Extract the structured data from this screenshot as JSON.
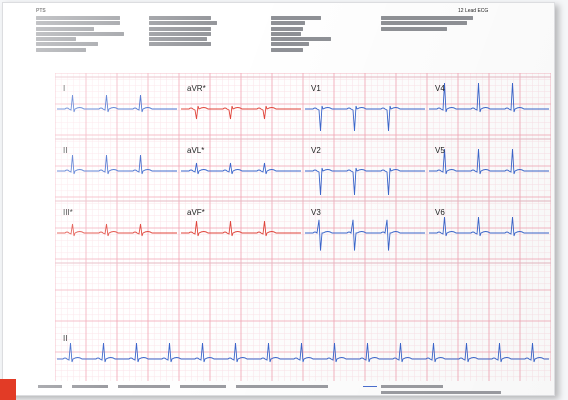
{
  "report": {
    "patient_name": "PTS",
    "title": "12 Lead ECG"
  },
  "colors": {
    "paper": "#ffffff",
    "grid_major": "#f2a6b4",
    "grid_minor": "#fbe3e8",
    "trace_normal": "#3a66cc",
    "trace_flagged": "#e0443a",
    "corner_accent": "#e23b26"
  },
  "leads": [
    {
      "row": 0,
      "col": 0,
      "label": "I",
      "flagged": false
    },
    {
      "row": 0,
      "col": 1,
      "label": "aVR*",
      "flagged": true
    },
    {
      "row": 0,
      "col": 2,
      "label": "V1",
      "flagged": false
    },
    {
      "row": 0,
      "col": 3,
      "label": "V4",
      "flagged": false
    },
    {
      "row": 1,
      "col": 0,
      "label": "II",
      "flagged": false
    },
    {
      "row": 1,
      "col": 1,
      "label": "aVL*",
      "flagged": false
    },
    {
      "row": 1,
      "col": 2,
      "label": "V2",
      "flagged": false
    },
    {
      "row": 1,
      "col": 3,
      "label": "V5",
      "flagged": false
    },
    {
      "row": 2,
      "col": 0,
      "label": "III*",
      "flagged": true
    },
    {
      "row": 2,
      "col": 1,
      "label": "aVF*",
      "flagged": true
    },
    {
      "row": 2,
      "col": 2,
      "label": "V3",
      "flagged": false
    },
    {
      "row": 2,
      "col": 3,
      "label": "V6",
      "flagged": false
    }
  ],
  "rhythm_strip": {
    "label": "II",
    "flagged": false
  }
}
